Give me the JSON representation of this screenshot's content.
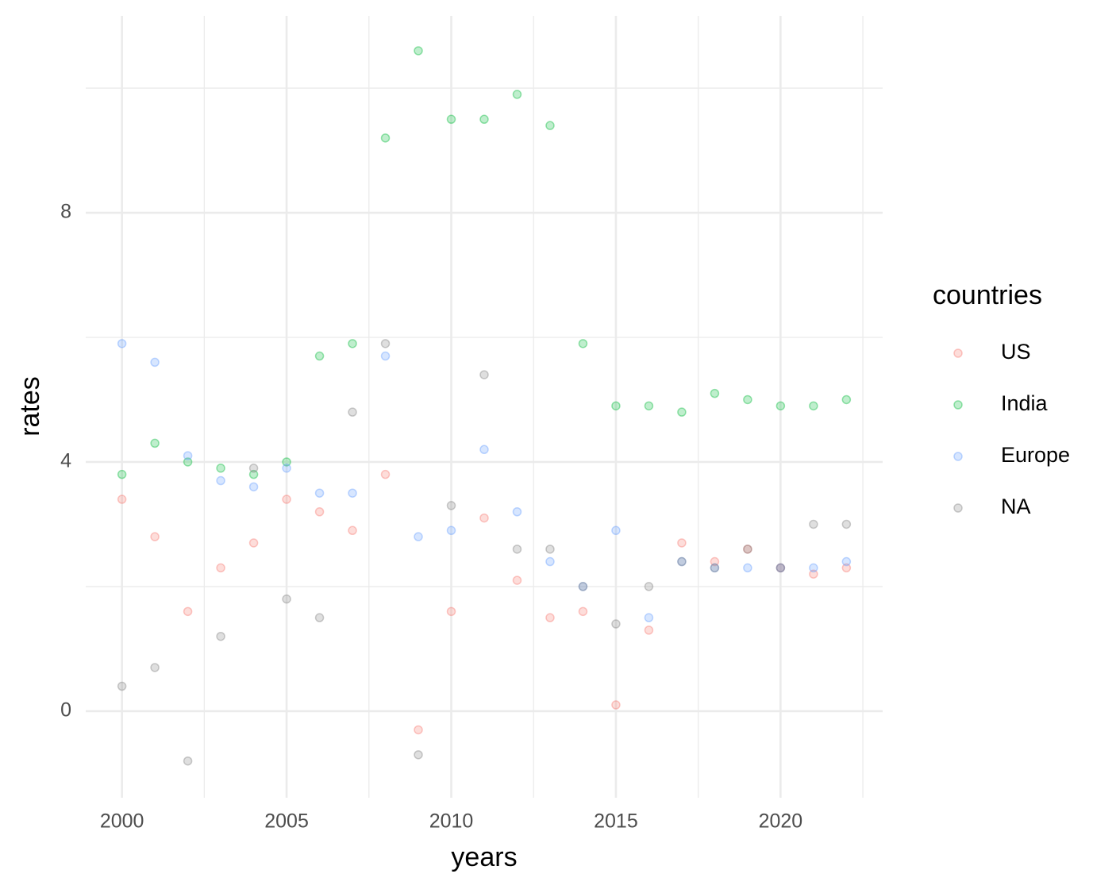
{
  "chart_data": {
    "type": "scatter",
    "x_label": "years",
    "y_label": "rates",
    "legend_title": "countries",
    "x": [
      2000,
      2001,
      2002,
      2003,
      2004,
      2005,
      2006,
      2007,
      2008,
      2009,
      2010,
      2011,
      2012,
      2013,
      2014,
      2015,
      2016,
      2017,
      2018,
      2019,
      2020,
      2021,
      2022
    ],
    "series": [
      {
        "name": "US",
        "color": "#F8766D",
        "values": [
          3.4,
          2.8,
          1.6,
          2.3,
          2.7,
          3.4,
          3.2,
          2.9,
          3.8,
          -0.3,
          1.6,
          3.1,
          2.1,
          1.5,
          1.6,
          0.1,
          1.3,
          2.7,
          2.4,
          2.6,
          2.3,
          2.2,
          2.3
        ]
      },
      {
        "name": "India",
        "color": "#00BA38",
        "values": [
          3.8,
          4.3,
          4.0,
          3.9,
          3.8,
          4.0,
          5.7,
          5.9,
          9.2,
          10.6,
          9.5,
          9.5,
          9.9,
          9.4,
          5.9,
          4.9,
          4.9,
          4.8,
          5.1,
          5.0,
          4.9,
          4.9,
          5.0
        ]
      },
      {
        "name": "Europe",
        "color": "#619CFF",
        "values": [
          5.9,
          5.6,
          4.1,
          3.7,
          3.6,
          3.9,
          3.5,
          3.5,
          5.7,
          2.8,
          2.9,
          4.2,
          3.2,
          2.4,
          2.0,
          2.9,
          1.5,
          2.4,
          2.3,
          2.3,
          2.3,
          2.3,
          2.4
        ]
      },
      {
        "name": "NA",
        "color": "#7F7F7F",
        "values": [
          0.4,
          0.7,
          -0.8,
          1.2,
          3.9,
          1.8,
          1.5,
          4.8,
          5.9,
          -0.7,
          3.3,
          5.4,
          2.6,
          2.6,
          2.0,
          1.4,
          2.0,
          2.4,
          2.3,
          2.6,
          2.3,
          3.0,
          3.0
        ]
      }
    ],
    "alpha": 0.25,
    "xlim": [
      1998.9,
      2023.1
    ],
    "xticks": [
      2000,
      2005,
      2010,
      2015,
      2020
    ],
    "x_minor_grid": [
      2002.5,
      2007.5,
      2012.5,
      2017.5,
      2022.5
    ],
    "ylim": [
      -1.39,
      11.16
    ],
    "yticks": [
      0,
      4,
      8
    ],
    "y_minor_grid": [
      2,
      6,
      10
    ],
    "grid": true,
    "legend_position": "right"
  }
}
